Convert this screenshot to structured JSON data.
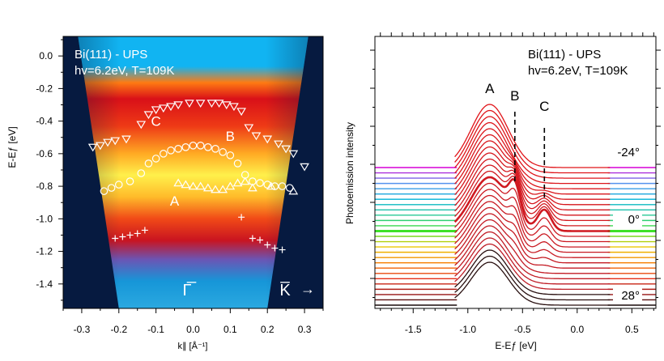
{
  "colors": {
    "background": "#061a40",
    "heat_low": "#17a8e8",
    "heat_mid": "#e8231a",
    "heat_high": "#ffef3a",
    "marker": "#ffffff",
    "axis": "#000000"
  },
  "chart_data": [
    {
      "type": "heatmap",
      "panel": "left",
      "title_line1": "Bi(111) - UPS",
      "title_line2": "hv=6.2eV, T=109K",
      "xlabel": "k∥ [Å⁻¹]",
      "ylabel": "E-Eƒ [eV]",
      "xlim": [
        -0.35,
        0.35
      ],
      "ylim": [
        -1.55,
        0.12
      ],
      "x_ticks": [
        "-0.3",
        "-0.2",
        "-0.1",
        "0.0",
        "0.1",
        "0.2",
        "0.3"
      ],
      "y_ticks": [
        "0.0",
        "-0.2",
        "-0.4",
        "-0.6",
        "-0.8",
        "-1.0",
        "-1.2",
        "-1.4"
      ],
      "band_labels": [
        {
          "text": "C",
          "k": -0.1,
          "e": -0.43
        },
        {
          "text": "B",
          "k": 0.1,
          "e": -0.52
        },
        {
          "text": "A",
          "k": -0.05,
          "e": -0.92
        }
      ],
      "direction_labels": {
        "gamma": "Γ̅",
        "k_bar": "K̅",
        "arrow": "→"
      },
      "series": [
        {
          "name": "C",
          "marker": "triangle-down",
          "points": [
            [
              -0.27,
              -0.56
            ],
            [
              -0.25,
              -0.55
            ],
            [
              -0.23,
              -0.53
            ],
            [
              -0.21,
              -0.52
            ],
            [
              -0.18,
              -0.51
            ],
            [
              -0.14,
              -0.42
            ],
            [
              -0.12,
              -0.36
            ],
            [
              -0.1,
              -0.33
            ],
            [
              -0.08,
              -0.32
            ],
            [
              -0.06,
              -0.31
            ],
            [
              -0.04,
              -0.3
            ],
            [
              -0.01,
              -0.29
            ],
            [
              0.02,
              -0.29
            ],
            [
              0.05,
              -0.29
            ],
            [
              0.07,
              -0.29
            ],
            [
              0.09,
              -0.3
            ],
            [
              0.11,
              -0.31
            ],
            [
              0.13,
              -0.34
            ],
            [
              0.15,
              -0.44
            ],
            [
              0.17,
              -0.49
            ],
            [
              0.2,
              -0.51
            ],
            [
              0.23,
              -0.54
            ],
            [
              0.25,
              -0.57
            ],
            [
              0.27,
              -0.6
            ],
            [
              0.3,
              -0.68
            ]
          ]
        },
        {
          "name": "B",
          "marker": "circle",
          "points": [
            [
              -0.24,
              -0.83
            ],
            [
              -0.22,
              -0.81
            ],
            [
              -0.2,
              -0.79
            ],
            [
              -0.17,
              -0.77
            ],
            [
              -0.14,
              -0.72
            ],
            [
              -0.12,
              -0.66
            ],
            [
              -0.1,
              -0.63
            ],
            [
              -0.08,
              -0.6
            ],
            [
              -0.06,
              -0.58
            ],
            [
              -0.04,
              -0.57
            ],
            [
              -0.02,
              -0.56
            ],
            [
              0.0,
              -0.55
            ],
            [
              0.02,
              -0.55
            ],
            [
              0.04,
              -0.56
            ],
            [
              0.06,
              -0.57
            ],
            [
              0.08,
              -0.59
            ],
            [
              0.1,
              -0.61
            ],
            [
              0.12,
              -0.66
            ],
            [
              0.14,
              -0.73
            ],
            [
              0.16,
              -0.77
            ],
            [
              0.18,
              -0.78
            ],
            [
              0.2,
              -0.79
            ],
            [
              0.22,
              -0.8
            ],
            [
              0.24,
              -0.8
            ],
            [
              0.26,
              -0.81
            ]
          ]
        },
        {
          "name": "A",
          "marker": "triangle-up",
          "points": [
            [
              -0.04,
              -0.78
            ],
            [
              -0.02,
              -0.79
            ],
            [
              0.0,
              -0.8
            ],
            [
              0.02,
              -0.8
            ],
            [
              0.04,
              -0.81
            ],
            [
              0.06,
              -0.82
            ],
            [
              0.08,
              -0.82
            ],
            [
              0.1,
              -0.8
            ],
            [
              0.12,
              -0.78
            ],
            [
              0.14,
              -0.77
            ],
            [
              0.16,
              -0.81
            ],
            [
              0.21,
              -0.8
            ],
            [
              0.27,
              -0.83
            ]
          ]
        },
        {
          "name": "",
          "marker": "plus",
          "points": [
            [
              -0.21,
              -1.12
            ],
            [
              -0.19,
              -1.11
            ],
            [
              -0.17,
              -1.1
            ],
            [
              -0.15,
              -1.09
            ],
            [
              -0.13,
              -1.07
            ],
            [
              0.13,
              -0.99
            ],
            [
              0.16,
              -1.12
            ],
            [
              0.18,
              -1.13
            ],
            [
              0.2,
              -1.16
            ],
            [
              0.22,
              -1.18
            ],
            [
              0.24,
              -1.19
            ]
          ]
        }
      ]
    },
    {
      "type": "line",
      "panel": "right",
      "title_line1": "Bi(111) - UPS",
      "title_line2": "hv=6.2eV, T=109K",
      "xlabel": "E-Eƒ [eV]",
      "ylabel": "Photoemission intensity",
      "xlim": [
        -1.85,
        0.72
      ],
      "x_ticks": [
        "-1.5",
        "-1.0",
        "-0.5",
        "0.0",
        "0.5"
      ],
      "peak_labels": [
        {
          "text": "A",
          "e": -0.8
        },
        {
          "text": "B",
          "e": -0.57
        },
        {
          "text": "C",
          "e": -0.3
        }
      ],
      "angle_labels": [
        "-24°",
        "0°",
        "28°"
      ],
      "angle_range_deg": [
        -24,
        28
      ],
      "angle_step_deg": 2
    }
  ]
}
